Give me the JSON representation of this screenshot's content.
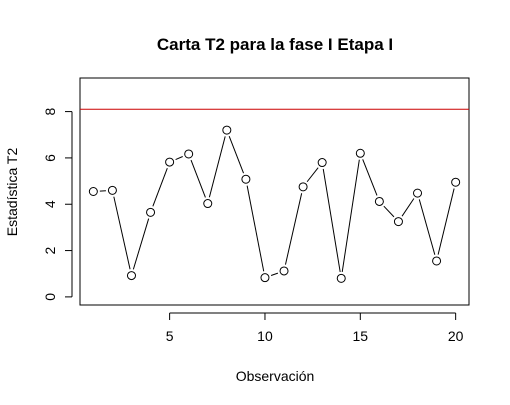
{
  "chart_data": {
    "type": "line",
    "title": "Carta T2 para la fase I Etapa I",
    "xlabel": "Observación",
    "ylabel": "Estadística T2",
    "x": [
      1,
      2,
      3,
      4,
      5,
      6,
      7,
      8,
      9,
      10,
      11,
      12,
      13,
      14,
      15,
      16,
      17,
      18,
      19,
      20
    ],
    "series": [
      {
        "values": [
          4.55,
          4.6,
          0.92,
          3.65,
          5.82,
          6.17,
          4.03,
          7.2,
          5.08,
          0.83,
          1.12,
          4.75,
          5.8,
          0.8,
          6.2,
          4.12,
          3.25,
          4.48,
          1.55,
          4.95
        ],
        "color": "#000000",
        "marker": "open-circle",
        "line_style": "b"
      }
    ],
    "control_limit": {
      "value": 8.1,
      "color": "#cc0000"
    },
    "xticks": [
      "5",
      "10",
      "15",
      "20"
    ],
    "yticks": [
      "0",
      "2",
      "4",
      "6",
      "8"
    ],
    "xlim": [
      0.3,
      20.7
    ],
    "ylim": [
      -0.35,
      9.45
    ],
    "grid": false,
    "legend": "none"
  }
}
